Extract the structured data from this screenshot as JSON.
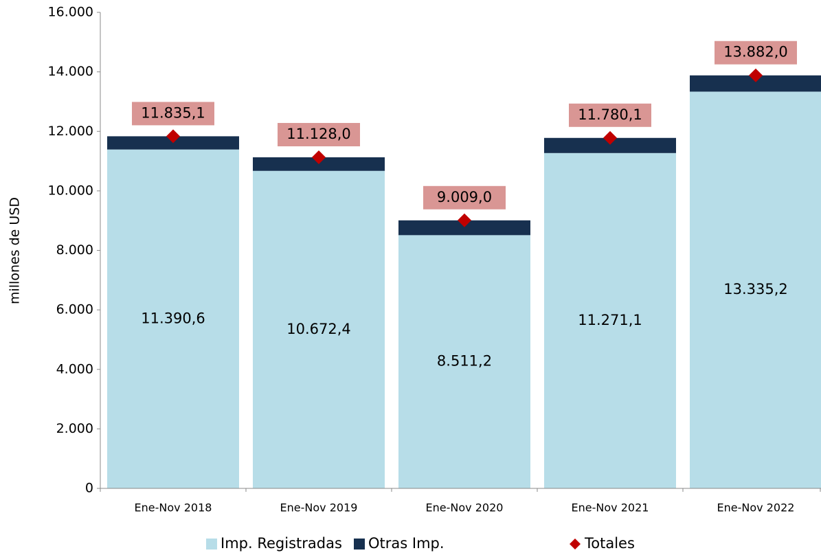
{
  "chart_data": {
    "type": "bar",
    "stacked": true,
    "y_label": "millones de  USD",
    "categories": [
      "Ene-Nov 2018",
      "Ene-Nov 2019",
      "Ene-Nov 2020",
      "Ene-Nov 2021",
      "Ene-Nov 2022"
    ],
    "series": [
      {
        "name": "Imp. Registradas",
        "color": "#b7dde8",
        "values": [
          11390.6,
          10672.4,
          8511.2,
          11271.1,
          13335.2
        ],
        "value_labels": [
          "11.390,6",
          "10.672,4",
          "8.511,2",
          "11.271,1",
          "13.335,2"
        ]
      },
      {
        "name": "Otras Imp.",
        "color": "#17304f",
        "values": [
          444.5,
          455.6,
          497.8,
          509.0,
          546.8
        ]
      },
      {
        "name": "Totales",
        "type": "scatter",
        "marker": "diamond",
        "color": "#c00000",
        "label_box_color": "#d99694",
        "values": [
          11835.1,
          11128.0,
          9009.0,
          11780.1,
          13882.0
        ],
        "value_labels": [
          "11.835,1",
          "11.128,0",
          "9.009,0",
          "11.780,1",
          "13.882,0"
        ]
      }
    ],
    "ylim": [
      0,
      16000
    ],
    "yticks": [
      0,
      {
        "value": 2000,
        "label": "2.000"
      },
      {
        "value": 4000,
        "label": "4.000"
      },
      {
        "value": 6000,
        "label": "6.000"
      },
      {
        "value": 8000,
        "label": "8.000"
      },
      {
        "value": 10000,
        "label": "10.000"
      },
      {
        "value": 12000,
        "label": "12.000"
      },
      {
        "value": 14000,
        "label": "14.000"
      },
      {
        "value": 16000,
        "label": "16.000"
      }
    ],
    "grid": false,
    "legend": "bottom"
  }
}
